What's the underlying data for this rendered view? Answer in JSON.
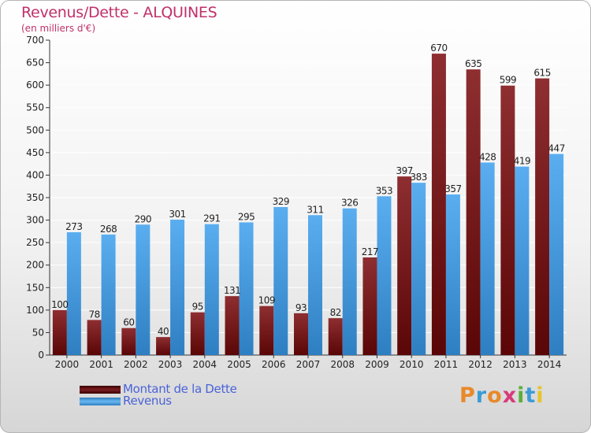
{
  "header": {
    "title": "Revenus/Dette - ALQUINES",
    "subtitle": "(en milliers d'€)"
  },
  "legend": {
    "items": [
      {
        "label": "Montant de la Dette",
        "color": "#7a1e22"
      },
      {
        "label": "Revenus",
        "color": "#4a9ee0"
      }
    ]
  },
  "brand": {
    "text": "Proxiti",
    "letters": [
      {
        "ch": "P",
        "color": "#e8892a"
      },
      {
        "ch": "r",
        "color": "#3a9bd6"
      },
      {
        "ch": "o",
        "color": "#e8892a"
      },
      {
        "ch": "x",
        "color": "#d83a7a"
      },
      {
        "ch": "i",
        "color": "#5aaf3a"
      },
      {
        "ch": "t",
        "color": "#3a9bd6"
      },
      {
        "ch": "i",
        "color": "#e8c32a"
      }
    ]
  },
  "chart_data": {
    "type": "bar",
    "title": "Revenus/Dette - ALQUINES",
    "subtitle": "(en milliers d'€)",
    "categories": [
      "2000",
      "2001",
      "2002",
      "2003",
      "2004",
      "2005",
      "2006",
      "2007",
      "2008",
      "2009",
      "2010",
      "2011",
      "2012",
      "2013",
      "2014"
    ],
    "series": [
      {
        "name": "Montant de la Dette",
        "color": "#7a1e22",
        "values": [
          100,
          78,
          60,
          40,
          95,
          131,
          109,
          93,
          82,
          217,
          397,
          670,
          635,
          599,
          615
        ]
      },
      {
        "name": "Revenus",
        "color": "#4a9ee0",
        "values": [
          273,
          268,
          290,
          301,
          291,
          295,
          329,
          311,
          326,
          353,
          383,
          357,
          428,
          419,
          447
        ]
      }
    ],
    "yticks": [
      0,
      50,
      100,
      150,
      200,
      250,
      300,
      350,
      400,
      450,
      500,
      550,
      600,
      650,
      700
    ],
    "ylim": [
      0,
      700
    ],
    "grid": true,
    "legend_position": "bottom-left"
  }
}
